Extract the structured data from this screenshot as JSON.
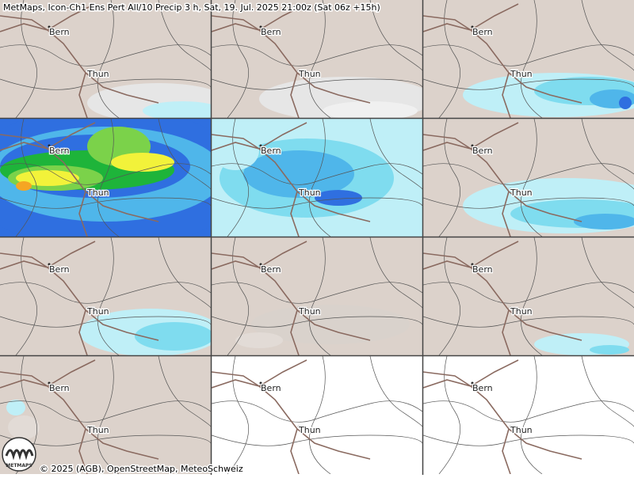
{
  "header": {
    "title": "MetMaps, Icon-Ch1 Ens Pert All/10 Precip 3 h, Sat, 19. Jul. 2025 21:00z (Sat 06z +15h)"
  },
  "city_labels": [
    "Bern",
    "Thun"
  ],
  "logo_text": "METMAPS",
  "footer": {
    "credit": "© 2025 (AGB), OpenStreetMap, MeteoSchweiz"
  }
}
